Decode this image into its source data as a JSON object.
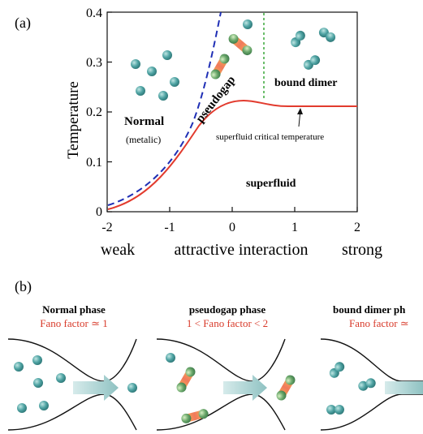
{
  "panel_a": {
    "label": "(a)",
    "y_axis_label": "Temperature",
    "y_ticks": [
      "0",
      "0.1",
      "0.2",
      "0.3",
      "0.4"
    ],
    "x_ticks": [
      "-2",
      "-1",
      "0",
      "1",
      "2"
    ],
    "x_label_left": "weak",
    "x_label_center": "attractive interaction",
    "x_label_right": "strong",
    "region_normal": "Normal",
    "region_normal_sub": "(metalic)",
    "region_pseudogap": "pseudogap",
    "region_bound_dimer": "bound dimer",
    "region_superfluid": "superfluid",
    "annotation": "superfluid critical temperature",
    "colors": {
      "tc_curve": "#e23b2e",
      "pseudogap_curve": "#1f2fb5",
      "divider": "#3aa83a",
      "atom": "#4aa0a0"
    }
  },
  "panel_b": {
    "label": "(b)",
    "phases": [
      {
        "title": "Normal phase",
        "fano": "Fano factor ≃ 1"
      },
      {
        "title": "pseudogap phase",
        "fano": "1 < Fano factor < 2"
      },
      {
        "title": "bound dimer ph",
        "fano": "Fano factor ≃"
      }
    ],
    "colors": {
      "fano_text": "#d83a2a",
      "arrow": "#a9cfcf"
    }
  }
}
